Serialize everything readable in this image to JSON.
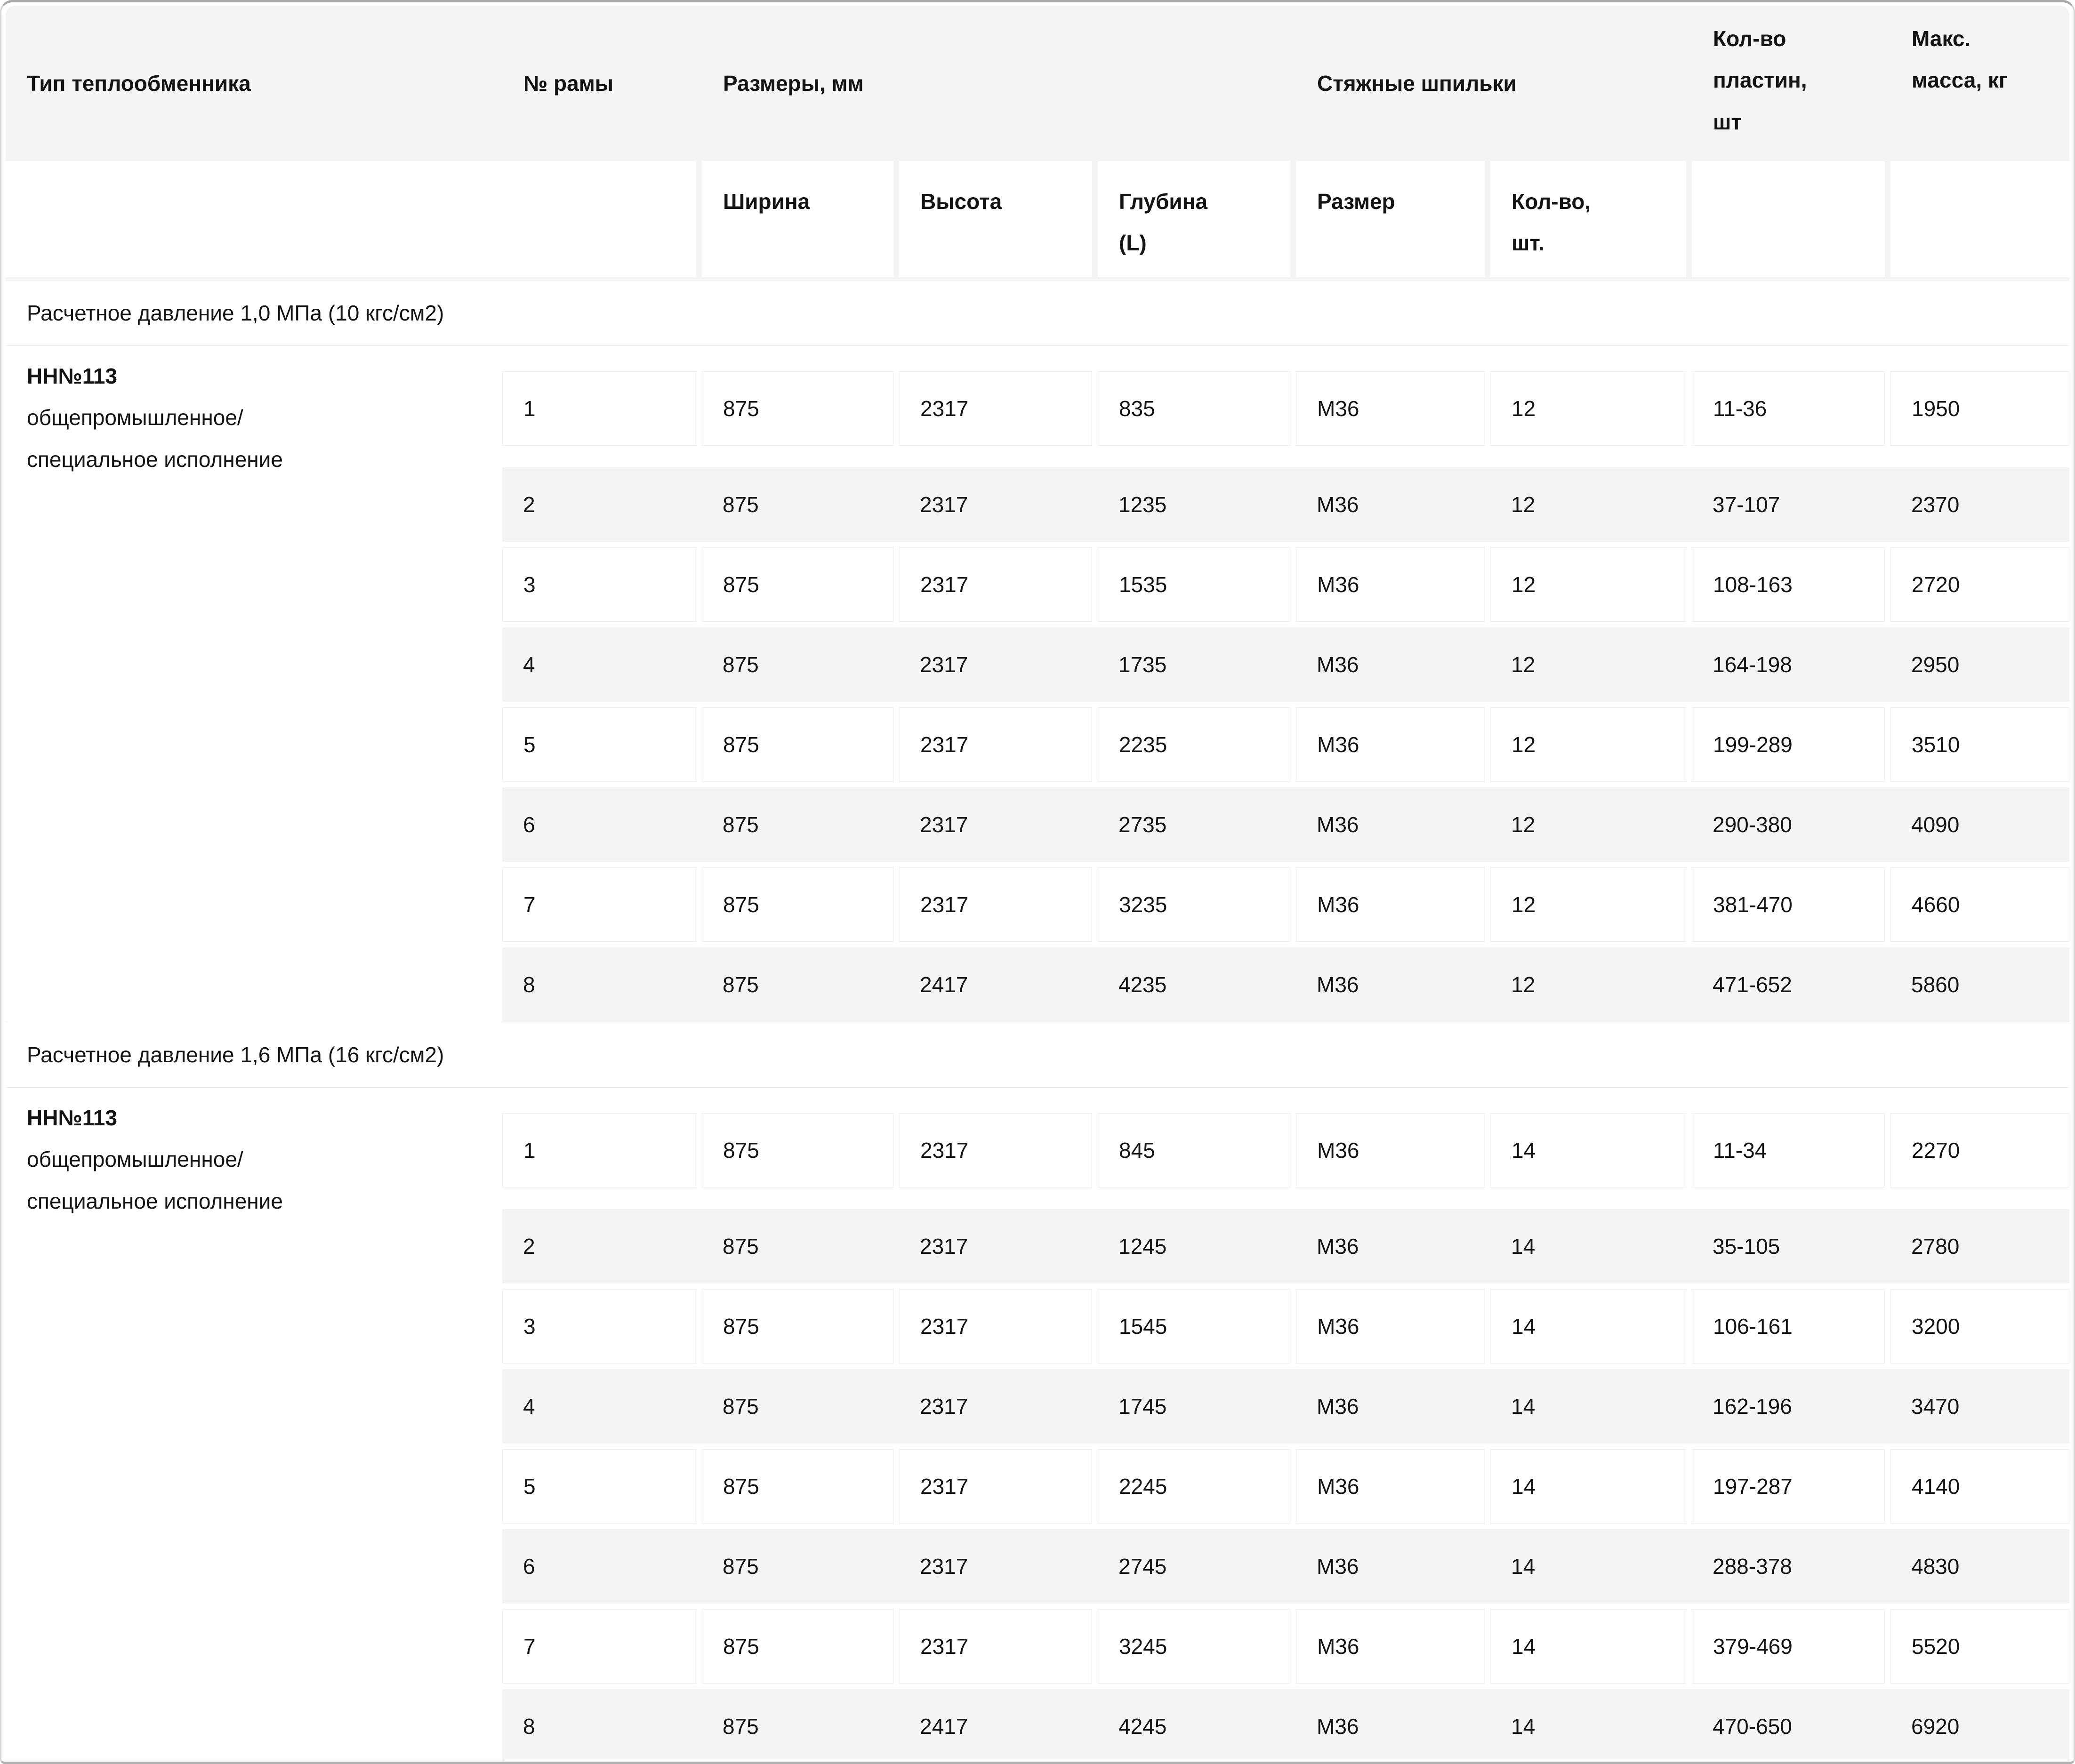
{
  "colors": {
    "header_bg": "#f4f4f5",
    "row_alt_bg": "#f4f4f5",
    "cell_border": "#ececed",
    "outer_border": "#a9a9a9",
    "text": "#141414"
  },
  "table": {
    "columns": {
      "type": "Тип теплообменника",
      "frame": "№ рамы",
      "dimensions": "Размеры, мм",
      "dim_width": "Ширина",
      "dim_height": "Высота",
      "dim_depth": "Глубина\n(L)",
      "studs": "Стяжные шпильки",
      "stud_size": "Размер",
      "stud_count": "Кол-во,\nшт.",
      "plates": "Кол-во\nпластин,\nшт",
      "max_mass": "Макс.\nмасса, кг"
    },
    "sections": [
      {
        "title": "Расчетное давление 1,0 МПа (10 кгс/см2)",
        "type_name": "НН№113",
        "type_desc": "общепромышленное/\nспециальное исполнение",
        "rows": [
          [
            "1",
            "875",
            "2317",
            "835",
            "М36",
            "12",
            "11-36",
            "1950"
          ],
          [
            "2",
            "875",
            "2317",
            "1235",
            "М36",
            "12",
            "37-107",
            "2370"
          ],
          [
            "3",
            "875",
            "2317",
            "1535",
            "М36",
            "12",
            "108-163",
            "2720"
          ],
          [
            "4",
            "875",
            "2317",
            "1735",
            "М36",
            "12",
            "164-198",
            "2950"
          ],
          [
            "5",
            "875",
            "2317",
            "2235",
            "М36",
            "12",
            "199-289",
            "3510"
          ],
          [
            "6",
            "875",
            "2317",
            "2735",
            "М36",
            "12",
            "290-380",
            "4090"
          ],
          [
            "7",
            "875",
            "2317",
            "3235",
            "М36",
            "12",
            "381-470",
            "4660"
          ],
          [
            "8",
            "875",
            "2417",
            "4235",
            "М36",
            "12",
            "471-652",
            "5860"
          ]
        ]
      },
      {
        "title": "Расчетное давление 1,6 МПа (16 кгс/см2)",
        "type_name": "НН№113",
        "type_desc": "общепромышленное/\nспециальное исполнение",
        "rows": [
          [
            "1",
            "875",
            "2317",
            "845",
            "М36",
            "14",
            "11-34",
            "2270"
          ],
          [
            "2",
            "875",
            "2317",
            "1245",
            "М36",
            "14",
            "35-105",
            "2780"
          ],
          [
            "3",
            "875",
            "2317",
            "1545",
            "М36",
            "14",
            "106-161",
            "3200"
          ],
          [
            "4",
            "875",
            "2317",
            "1745",
            "М36",
            "14",
            "162-196",
            "3470"
          ],
          [
            "5",
            "875",
            "2317",
            "2245",
            "М36",
            "14",
            "197-287",
            "4140"
          ],
          [
            "6",
            "875",
            "2317",
            "2745",
            "М36",
            "14",
            "288-378",
            "4830"
          ],
          [
            "7",
            "875",
            "2317",
            "3245",
            "М36",
            "14",
            "379-469",
            "5520"
          ],
          [
            "8",
            "875",
            "2417",
            "4245",
            "М36",
            "14",
            "470-650",
            "6920"
          ]
        ]
      }
    ]
  }
}
